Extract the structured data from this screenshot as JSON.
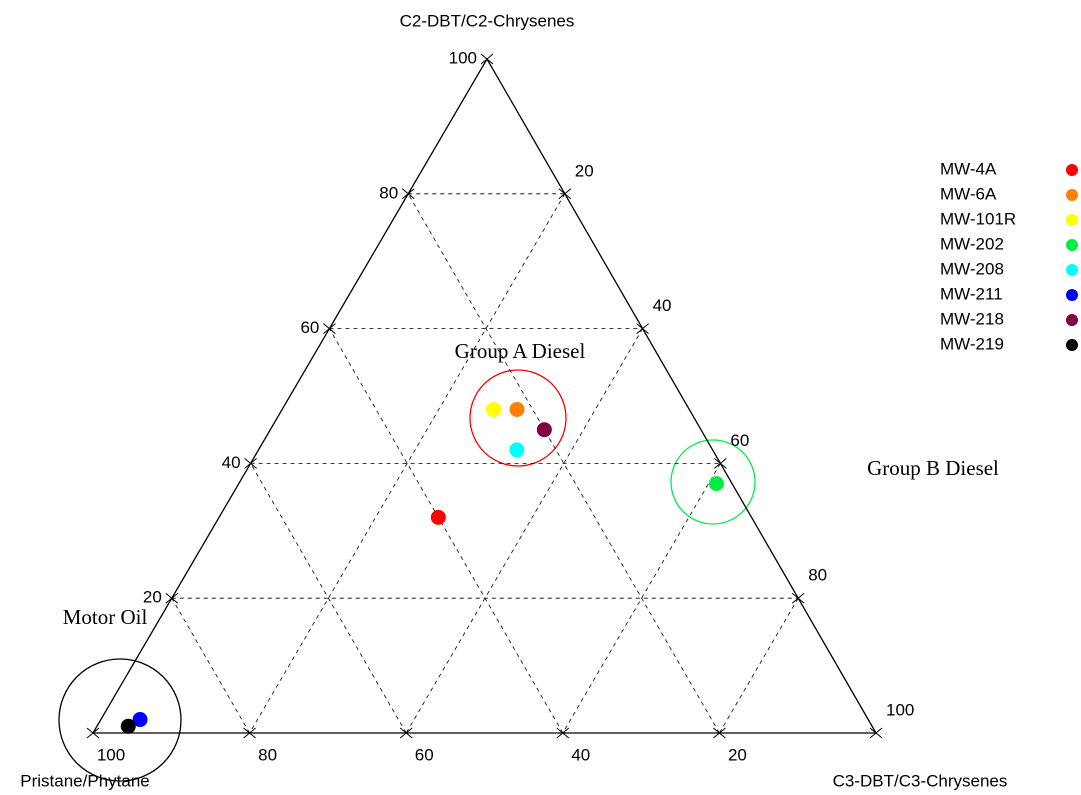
{
  "chart_data": {
    "type": "ternary",
    "axes": [
      {
        "label": "Pristane/Phytane",
        "ticks": [
          20,
          40,
          60,
          80,
          100
        ]
      },
      {
        "label": "C3-DBT/C3-Chrysenes",
        "ticks": [
          20,
          40,
          60,
          80,
          100
        ]
      },
      {
        "label": "C2-DBT/C2-Chrysenes",
        "ticks": [
          20,
          40,
          60,
          80,
          100
        ]
      }
    ],
    "grid": true,
    "series": [
      {
        "name": "MW-4A",
        "color": "#ff0000",
        "values": [
          40,
          28,
          32
        ]
      },
      {
        "name": "MW-6A",
        "color": "#ff8000",
        "values": [
          22,
          30,
          48
        ]
      },
      {
        "name": "MW-101R",
        "color": "#ffff00",
        "values": [
          25,
          27,
          48
        ]
      },
      {
        "name": "MW-202",
        "color": "#00ee44",
        "values": [
          2,
          61,
          37
        ]
      },
      {
        "name": "MW-208",
        "color": "#00ffff",
        "values": [
          25,
          33,
          42
        ]
      },
      {
        "name": "MW-211",
        "color": "#0000ff",
        "values": [
          93,
          5,
          2
        ]
      },
      {
        "name": "MW-218",
        "color": "#800040",
        "values": [
          20,
          35,
          45
        ]
      },
      {
        "name": "MW-219",
        "color": "#000000",
        "values": [
          95,
          4,
          1
        ]
      }
    ],
    "annotations": [
      "Group A Diesel",
      "Group B Diesel",
      "Motor Oil"
    ]
  }
}
